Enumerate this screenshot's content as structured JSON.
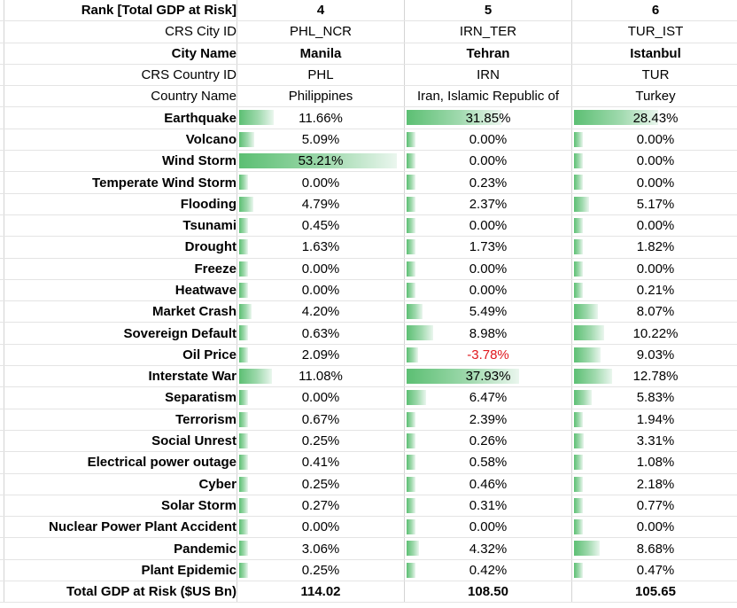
{
  "header": {
    "rank_label": "Rank [Total GDP at Risk]",
    "city_id_label": "CRS City ID",
    "city_name_label": "City Name",
    "country_id_label": "CRS Country ID",
    "country_name_label": "Country Name"
  },
  "cities": [
    {
      "rank": "4",
      "city_id": "PHL_NCR",
      "city_name": "Manila",
      "country_id": "PHL",
      "country_name": "Philippines",
      "total": "114.02"
    },
    {
      "rank": "5",
      "city_id": "IRN_TER",
      "city_name": "Tehran",
      "country_id": "IRN",
      "country_name": "Iran, Islamic Republic of",
      "total": "108.50"
    },
    {
      "rank": "6",
      "city_id": "TUR_IST",
      "city_name": "Istanbul",
      "country_id": "TUR",
      "country_name": "Turkey",
      "total": "105.65"
    }
  ],
  "threats": [
    {
      "name": "Earthquake",
      "values": [
        "11.66%",
        "31.85%",
        "28.43%"
      ],
      "bar": [
        11.66,
        31.85,
        28.43
      ]
    },
    {
      "name": "Volcano",
      "values": [
        "5.09%",
        "0.00%",
        "0.00%"
      ],
      "bar": [
        5.09,
        0.0,
        0.0
      ]
    },
    {
      "name": "Wind Storm",
      "values": [
        "53.21%",
        "0.00%",
        "0.00%"
      ],
      "bar": [
        53.21,
        0.0,
        0.0
      ]
    },
    {
      "name": "Temperate Wind Storm",
      "values": [
        "0.00%",
        "0.23%",
        "0.00%"
      ],
      "bar": [
        0.0,
        0.23,
        0.0
      ]
    },
    {
      "name": "Flooding",
      "values": [
        "4.79%",
        "2.37%",
        "5.17%"
      ],
      "bar": [
        4.79,
        2.37,
        5.17
      ]
    },
    {
      "name": "Tsunami",
      "values": [
        "0.45%",
        "0.00%",
        "0.00%"
      ],
      "bar": [
        0.45,
        0.0,
        0.0
      ]
    },
    {
      "name": "Drought",
      "values": [
        "1.63%",
        "1.73%",
        "1.82%"
      ],
      "bar": [
        1.63,
        1.73,
        1.82
      ]
    },
    {
      "name": "Freeze",
      "values": [
        "0.00%",
        "0.00%",
        "0.00%"
      ],
      "bar": [
        0.0,
        0.0,
        0.0
      ]
    },
    {
      "name": "Heatwave",
      "values": [
        "0.00%",
        "0.00%",
        "0.21%"
      ],
      "bar": [
        0.0,
        0.0,
        0.21
      ]
    },
    {
      "name": "Market Crash",
      "values": [
        "4.20%",
        "5.49%",
        "8.07%"
      ],
      "bar": [
        4.2,
        5.49,
        8.07
      ]
    },
    {
      "name": "Sovereign Default",
      "values": [
        "0.63%",
        "8.98%",
        "10.22%"
      ],
      "bar": [
        0.63,
        8.98,
        10.22
      ]
    },
    {
      "name": "Oil Price",
      "values": [
        "2.09%",
        "-3.78%",
        "9.03%"
      ],
      "bar": [
        2.09,
        -3.78,
        9.03
      ]
    },
    {
      "name": "Interstate War",
      "values": [
        "11.08%",
        "37.93%",
        "12.78%"
      ],
      "bar": [
        11.08,
        37.93,
        12.78
      ]
    },
    {
      "name": "Separatism",
      "values": [
        "0.00%",
        "6.47%",
        "5.83%"
      ],
      "bar": [
        0.0,
        6.47,
        5.83
      ]
    },
    {
      "name": "Terrorism",
      "values": [
        "0.67%",
        "2.39%",
        "1.94%"
      ],
      "bar": [
        0.67,
        2.39,
        1.94
      ]
    },
    {
      "name": "Social Unrest",
      "values": [
        "0.25%",
        "0.26%",
        "3.31%"
      ],
      "bar": [
        0.25,
        0.26,
        3.31
      ]
    },
    {
      "name": "Electrical power outage",
      "values": [
        "0.41%",
        "0.58%",
        "1.08%"
      ],
      "bar": [
        0.41,
        0.58,
        1.08
      ]
    },
    {
      "name": "Cyber",
      "values": [
        "0.25%",
        "0.46%",
        "2.18%"
      ],
      "bar": [
        0.25,
        0.46,
        2.18
      ]
    },
    {
      "name": "Solar Storm",
      "values": [
        "0.27%",
        "0.31%",
        "0.77%"
      ],
      "bar": [
        0.27,
        0.31,
        0.77
      ]
    },
    {
      "name": "Nuclear Power Plant Accident",
      "values": [
        "0.00%",
        "0.00%",
        "0.00%"
      ],
      "bar": [
        0.0,
        0.0,
        0.0
      ]
    },
    {
      "name": "Pandemic",
      "values": [
        "3.06%",
        "4.32%",
        "8.68%"
      ],
      "bar": [
        3.06,
        4.32,
        8.68
      ]
    },
    {
      "name": "Plant Epidemic",
      "values": [
        "0.25%",
        "0.42%",
        "0.47%"
      ],
      "bar": [
        0.25,
        0.42,
        0.47
      ]
    }
  ],
  "footer": {
    "total_label": "Total GDP at Risk  ($US Bn)"
  },
  "colors": {
    "bar_start": "#5cbf73",
    "bar_end": "#eaf6ee",
    "negative": "#e0181e"
  }
}
